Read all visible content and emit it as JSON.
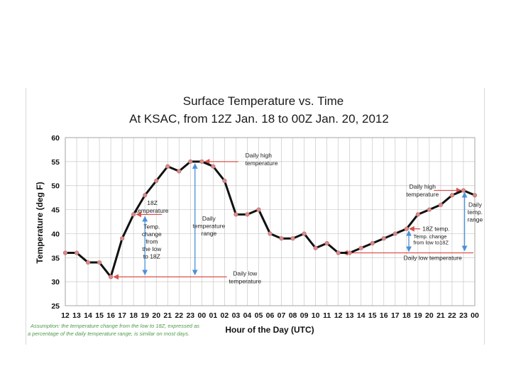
{
  "chart_data": {
    "type": "line",
    "title": "Surface Temperature vs. Time",
    "subtitle": "At KSAC, from 12Z Jan. 18 to 00Z Jan. 20, 2012",
    "xlabel": "Hour of the Day (UTC)",
    "ylabel": "Temperature (deg F)",
    "ylim": [
      25,
      60
    ],
    "yticks": [
      25,
      30,
      35,
      40,
      45,
      50,
      55,
      60
    ],
    "grid": true,
    "categories": [
      "12",
      "13",
      "14",
      "15",
      "16",
      "17",
      "18",
      "19",
      "20",
      "21",
      "22",
      "23",
      "00",
      "01",
      "02",
      "03",
      "04",
      "05",
      "06",
      "07",
      "08",
      "09",
      "10",
      "11",
      "12",
      "13",
      "14",
      "15",
      "16",
      "17",
      "18",
      "19",
      "20",
      "21",
      "22",
      "23",
      "00"
    ],
    "series": [
      {
        "name": "Surface Temperature",
        "color": "#111111",
        "marker_color": "#d98a8a",
        "values": [
          36,
          36,
          34,
          34,
          31,
          39,
          44,
          48,
          51,
          54,
          53,
          55,
          55,
          54,
          51,
          44,
          44,
          45,
          40,
          39,
          39,
          40,
          37,
          38,
          36,
          36,
          37,
          38,
          39,
          40,
          41,
          44,
          45,
          46,
          48,
          49,
          48
        ]
      }
    ],
    "annotations": [
      {
        "label_lines": [
          "Daily high",
          "temperature"
        ]
      },
      {
        "label_lines": [
          "18Z",
          "temperature"
        ]
      },
      {
        "label_lines": [
          "Temp.",
          "change",
          "from",
          "the low",
          "to 18Z"
        ]
      },
      {
        "label_lines": [
          "Daily",
          "temperature",
          "range"
        ]
      },
      {
        "label_lines": [
          "Daily low",
          "temperature"
        ]
      },
      {
        "label_lines": [
          "Daily high",
          "temperature"
        ]
      },
      {
        "label_lines": [
          "Daily",
          "temp.",
          "range"
        ]
      },
      {
        "label_lines": [
          "18Z temp."
        ]
      },
      {
        "label_lines": [
          "Temp. change",
          "from low to18Z"
        ]
      },
      {
        "label_lines": [
          "Daily low temperature"
        ]
      }
    ],
    "note_lines": [
      "Assumption: the temperature change from the low to 18Z, expressed as",
      "a percentage of the daily temperature range, is similar on most days."
    ],
    "colors": {
      "line": "#111111",
      "marker": "#d98a8a",
      "arrow_red": "#d9534f",
      "arrow_blue": "#4a90d9",
      "grid": "#c8c8c8",
      "note": "#4a9a4a"
    }
  }
}
